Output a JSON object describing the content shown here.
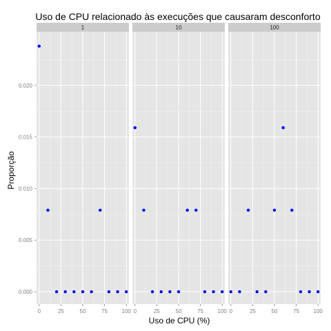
{
  "chart_data": {
    "type": "scatter",
    "title": "Uso de CPU relacionado às execuções que causaram desconforto",
    "xlabel": "Uso de CPU (%)",
    "ylabel": "Proporção",
    "xlim": [
      -3,
      103
    ],
    "ylim": [
      -0.0012,
      0.0252
    ],
    "x_ticks": [
      0,
      25,
      50,
      75,
      100
    ],
    "x_tick_labels": [
      "0",
      "25",
      "50",
      "75",
      "100"
    ],
    "y_ticks": [
      0,
      0.005,
      0.01,
      0.015,
      0.02
    ],
    "y_tick_labels": [
      "0.000",
      "0.005",
      "0.010",
      "0.015",
      "0.020"
    ],
    "grid": true,
    "legend": "none",
    "point_color": "#0000ff",
    "panel_background": "#e5e5e5",
    "strip_background": "#cccccc",
    "grid_color": "#ffffff",
    "x": [
      0,
      10,
      20,
      30,
      40,
      50,
      60,
      70,
      80,
      90,
      100
    ],
    "facets": [
      {
        "label": "1",
        "values": [
          0.0238,
          0.0079,
          0,
          0,
          0,
          0,
          0,
          0.0079,
          0,
          0,
          0
        ]
      },
      {
        "label": "10",
        "values": [
          0.0159,
          0.0079,
          0,
          0,
          0,
          0,
          0.0079,
          0.0079,
          0,
          0,
          0
        ]
      },
      {
        "label": "100",
        "values": [
          0,
          0,
          0.0079,
          0,
          0,
          0.0079,
          0.0159,
          0.0079,
          0,
          0,
          0
        ]
      }
    ]
  }
}
